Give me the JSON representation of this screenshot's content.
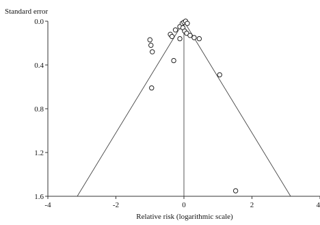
{
  "chart_data": {
    "type": "scatter",
    "ylabel": "Standard error",
    "xlabel": "Relative risk (logarithmic scale)",
    "xlim": [
      -4,
      4
    ],
    "ylim": [
      0.0,
      1.6
    ],
    "y_inverted": true,
    "x_ticks": [
      -4,
      -2,
      0,
      2,
      4
    ],
    "x_tick_labels": [
      "-4",
      "-2",
      "0",
      "2",
      "4"
    ],
    "y_ticks": [
      0.0,
      0.4,
      0.8,
      1.2,
      1.6
    ],
    "y_tick_labels": [
      "0.0",
      "0.4",
      "0.8",
      "1.2",
      "1.6"
    ],
    "pooled_estimate": 0.0,
    "funnel_half_width_per_se": 1.96,
    "grid": false,
    "points": [
      {
        "x": -1.0,
        "y": 0.17
      },
      {
        "x": -0.97,
        "y": 0.22
      },
      {
        "x": -0.93,
        "y": 0.28
      },
      {
        "x": -0.95,
        "y": 0.61
      },
      {
        "x": -0.3,
        "y": 0.36
      },
      {
        "x": -0.4,
        "y": 0.12
      },
      {
        "x": -0.35,
        "y": 0.14
      },
      {
        "x": -0.25,
        "y": 0.08
      },
      {
        "x": -0.12,
        "y": 0.16
      },
      {
        "x": -0.12,
        "y": 0.05
      },
      {
        "x": -0.05,
        "y": 0.02
      },
      {
        "x": 0.0,
        "y": 0.01
      },
      {
        "x": 0.05,
        "y": 0.0
      },
      {
        "x": 0.1,
        "y": 0.02
      },
      {
        "x": -0.03,
        "y": 0.06
      },
      {
        "x": 0.02,
        "y": 0.09
      },
      {
        "x": 0.08,
        "y": 0.11
      },
      {
        "x": 0.18,
        "y": 0.13
      },
      {
        "x": 0.3,
        "y": 0.15
      },
      {
        "x": 0.45,
        "y": 0.16
      },
      {
        "x": 1.05,
        "y": 0.49
      },
      {
        "x": 1.52,
        "y": 1.55
      }
    ]
  }
}
